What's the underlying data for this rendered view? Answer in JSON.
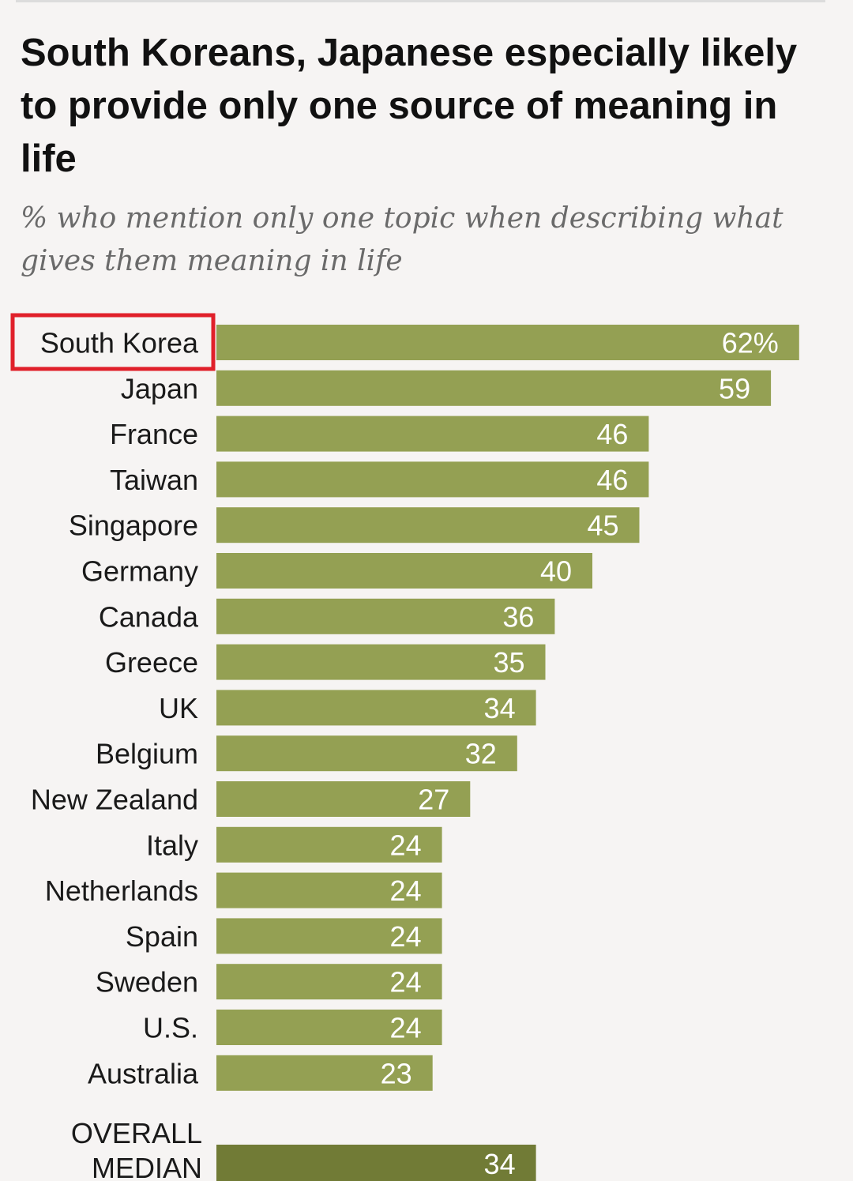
{
  "chart_data": {
    "type": "bar",
    "orientation": "horizontal",
    "title": "South Koreans, Japanese especially likely to provide only one source of meaning in life",
    "subtitle": "% who mention only one topic when describing what gives them meaning in life",
    "categories": [
      "South Korea",
      "Japan",
      "France",
      "Taiwan",
      "Singapore",
      "Germany",
      "Canada",
      "Greece",
      "UK",
      "Belgium",
      "New Zealand",
      "Italy",
      "Netherlands",
      "Spain",
      "Sweden",
      "U.S.",
      "Australia"
    ],
    "values": [
      62,
      59,
      46,
      46,
      45,
      40,
      36,
      35,
      34,
      32,
      27,
      24,
      24,
      24,
      24,
      24,
      23
    ],
    "value_labels": [
      "62%",
      "59",
      "46",
      "46",
      "45",
      "40",
      "36",
      "35",
      "34",
      "32",
      "27",
      "24",
      "24",
      "24",
      "24",
      "24",
      "23"
    ],
    "highlighted_category": "South Korea",
    "summary": {
      "label_lines": [
        "OVERALL",
        "MEDIAN"
      ],
      "value": 34,
      "value_label": "34"
    },
    "colors": {
      "bar": "#94a053",
      "summary_bar": "#717b36",
      "highlight_box": "#e0202a",
      "value_text": "#ffffff",
      "category_text": "#1a1a1a"
    }
  }
}
